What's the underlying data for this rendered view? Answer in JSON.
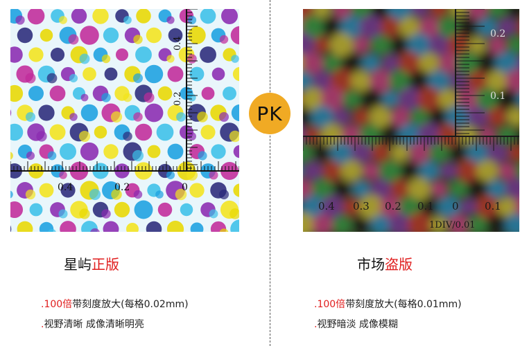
{
  "pk_label": "PK",
  "left": {
    "brand": "星屿",
    "edition": "正版",
    "scale_labels": [
      "0.4",
      "0.2",
      "0",
      "0.2",
      "0.4"
    ],
    "bullets": [
      {
        "prefix": ".",
        "highlight": "100倍",
        "text": "带刻度放大(每格0.02mm)"
      },
      {
        "prefix": ".",
        "highlight": "",
        "text": "视野清晰 成像清晰明亮"
      }
    ]
  },
  "right": {
    "brand": "市场",
    "edition": "盗版",
    "scale_labels": [
      "0.4",
      "0.3",
      "0.2",
      "0.1",
      "0",
      "0.1",
      "0.1",
      "0.2"
    ],
    "division_note": "1DIV/0.01",
    "bullets": [
      {
        "prefix": ".",
        "highlight": "100倍",
        "text": "带刻度放大(每格0.01mm)"
      },
      {
        "prefix": ".",
        "highlight": "",
        "text": "视野暗淡 成像模糊"
      }
    ]
  },
  "colors": {
    "accent": "#e01d1d",
    "badge": "#f0aa24"
  }
}
